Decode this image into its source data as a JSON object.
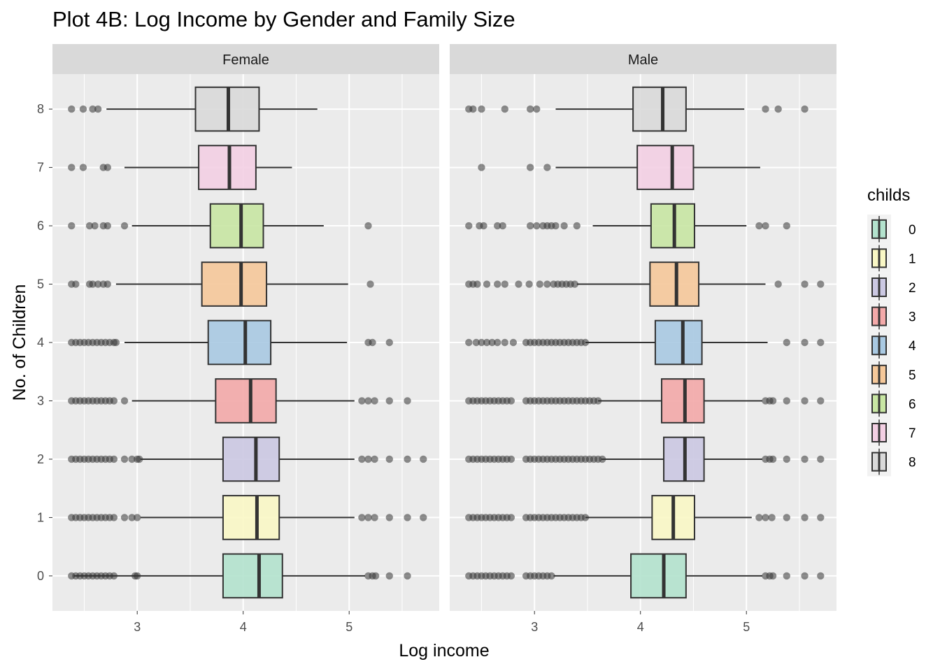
{
  "chart_data": {
    "type": "boxplot",
    "title": "Plot 4B: Log Income by Gender and Family Size",
    "xlabel": "Log income",
    "ylabel": "No. of Children",
    "xlim": [
      2.2,
      5.85
    ],
    "x_ticks": [
      3,
      4,
      5
    ],
    "y_categories": [
      "0",
      "1",
      "2",
      "3",
      "4",
      "5",
      "6",
      "7",
      "8"
    ],
    "legend": {
      "title": "childs",
      "position": "right",
      "entries": [
        "0",
        "1",
        "2",
        "3",
        "4",
        "5",
        "6",
        "7",
        "8"
      ]
    },
    "colors": {
      "0": "#b3e2cd",
      "1": "#f9f7c5",
      "2": "#cbc8e2",
      "3": "#f3a9a9",
      "4": "#a9c9e2",
      "5": "#f5c89a",
      "6": "#c8e6a3",
      "7": "#f3cfe3",
      "8": "#d9d9d9"
    },
    "grid": true,
    "panels": [
      {
        "label": "Female",
        "boxes": [
          {
            "childs": "0",
            "lower_whisker": 2.4,
            "q1": 3.81,
            "median": 4.15,
            "q3": 4.37,
            "upper_whisker": 5.15,
            "outliers": [
              2.38,
              2.42,
              2.46,
              2.5,
              2.54,
              2.58,
              2.62,
              2.66,
              2.7,
              2.74,
              2.78,
              2.98,
              3.0,
              5.18,
              5.22,
              5.25,
              5.38,
              5.55
            ]
          },
          {
            "childs": "1",
            "lower_whisker": 3.03,
            "q1": 3.81,
            "median": 4.13,
            "q3": 4.34,
            "upper_whisker": 5.05,
            "outliers": [
              2.38,
              2.42,
              2.46,
              2.5,
              2.54,
              2.58,
              2.62,
              2.66,
              2.7,
              2.74,
              2.78,
              2.88,
              2.95,
              3.0,
              5.12,
              5.18,
              5.24,
              5.38,
              5.55,
              5.7
            ]
          },
          {
            "childs": "2",
            "lower_whisker": 3.03,
            "q1": 3.81,
            "median": 4.12,
            "q3": 4.34,
            "upper_whisker": 5.05,
            "outliers": [
              2.38,
              2.42,
              2.46,
              2.5,
              2.54,
              2.58,
              2.62,
              2.66,
              2.7,
              2.74,
              2.78,
              2.88,
              2.95,
              3.0,
              3.02,
              5.12,
              5.18,
              5.24,
              5.38,
              5.55,
              5.7
            ]
          },
          {
            "childs": "3",
            "lower_whisker": 2.95,
            "q1": 3.74,
            "median": 4.07,
            "q3": 4.31,
            "upper_whisker": 5.05,
            "outliers": [
              2.38,
              2.42,
              2.46,
              2.5,
              2.54,
              2.58,
              2.62,
              2.66,
              2.7,
              2.74,
              2.78,
              2.88,
              5.12,
              5.18,
              5.24,
              5.38,
              5.55
            ]
          },
          {
            "childs": "4",
            "lower_whisker": 2.88,
            "q1": 3.67,
            "median": 4.02,
            "q3": 4.26,
            "upper_whisker": 4.98,
            "outliers": [
              2.38,
              2.42,
              2.46,
              2.5,
              2.54,
              2.58,
              2.62,
              2.66,
              2.7,
              2.74,
              2.78,
              2.8,
              5.18,
              5.22,
              5.38
            ]
          },
          {
            "childs": "5",
            "lower_whisker": 2.8,
            "q1": 3.61,
            "median": 3.98,
            "q3": 4.22,
            "upper_whisker": 4.99,
            "outliers": [
              2.38,
              2.42,
              2.55,
              2.58,
              2.63,
              2.68,
              2.72,
              5.2
            ]
          },
          {
            "childs": "6",
            "lower_whisker": 2.95,
            "q1": 3.69,
            "median": 3.98,
            "q3": 4.19,
            "upper_whisker": 4.76,
            "outliers": [
              2.38,
              2.55,
              2.6,
              2.68,
              2.72,
              2.88,
              5.18
            ]
          },
          {
            "childs": "7",
            "lower_whisker": 2.88,
            "q1": 3.58,
            "median": 3.87,
            "q3": 4.12,
            "upper_whisker": 4.46,
            "outliers": [
              2.38,
              2.49,
              2.68,
              2.72
            ]
          },
          {
            "childs": "8",
            "lower_whisker": 2.71,
            "q1": 3.55,
            "median": 3.86,
            "q3": 4.15,
            "upper_whisker": 4.7,
            "outliers": [
              2.38,
              2.49,
              2.58,
              2.63
            ]
          }
        ]
      },
      {
        "label": "Male",
        "boxes": [
          {
            "childs": "0",
            "lower_whisker": 3.18,
            "q1": 3.91,
            "median": 4.22,
            "q3": 4.43,
            "upper_whisker": 5.15,
            "outliers": [
              2.38,
              2.42,
              2.46,
              2.5,
              2.54,
              2.58,
              2.62,
              2.66,
              2.7,
              2.74,
              2.78,
              2.92,
              2.96,
              3.0,
              3.04,
              3.08,
              3.12,
              3.16,
              5.18,
              5.22,
              5.25,
              5.38,
              5.55,
              5.7
            ]
          },
          {
            "childs": "1",
            "lower_whisker": 3.48,
            "q1": 4.11,
            "median": 4.31,
            "q3": 4.51,
            "upper_whisker": 5.05,
            "outliers": [
              2.38,
              2.42,
              2.46,
              2.5,
              2.54,
              2.58,
              2.62,
              2.66,
              2.7,
              2.74,
              2.78,
              2.92,
              2.96,
              3.0,
              3.04,
              3.08,
              3.12,
              3.16,
              3.2,
              3.24,
              3.28,
              3.32,
              3.36,
              3.4,
              3.44,
              3.48,
              5.12,
              5.18,
              5.24,
              5.38,
              5.55,
              5.7
            ]
          },
          {
            "childs": "2",
            "lower_whisker": 3.63,
            "q1": 4.22,
            "median": 4.42,
            "q3": 4.6,
            "upper_whisker": 5.15,
            "outliers": [
              2.38,
              2.42,
              2.46,
              2.5,
              2.54,
              2.58,
              2.62,
              2.66,
              2.7,
              2.74,
              2.78,
              2.92,
              2.96,
              3.0,
              3.04,
              3.08,
              3.12,
              3.16,
              3.2,
              3.24,
              3.28,
              3.32,
              3.36,
              3.4,
              3.44,
              3.48,
              3.52,
              3.56,
              3.6,
              3.64,
              5.18,
              5.22,
              5.25,
              5.38,
              5.55,
              5.7
            ]
          },
          {
            "childs": "3",
            "lower_whisker": 3.6,
            "q1": 4.2,
            "median": 4.42,
            "q3": 4.6,
            "upper_whisker": 5.15,
            "outliers": [
              2.38,
              2.42,
              2.46,
              2.5,
              2.54,
              2.58,
              2.62,
              2.66,
              2.7,
              2.74,
              2.78,
              2.92,
              2.96,
              3.0,
              3.04,
              3.08,
              3.12,
              3.16,
              3.2,
              3.24,
              3.28,
              3.32,
              3.36,
              3.4,
              3.44,
              3.48,
              3.52,
              3.56,
              3.6,
              5.18,
              5.22,
              5.25,
              5.38,
              5.55,
              5.7
            ]
          },
          {
            "childs": "4",
            "lower_whisker": 3.48,
            "q1": 4.14,
            "median": 4.4,
            "q3": 4.58,
            "upper_whisker": 5.2,
            "outliers": [
              2.38,
              2.45,
              2.5,
              2.55,
              2.6,
              2.65,
              2.72,
              2.8,
              2.92,
              2.96,
              3.0,
              3.04,
              3.08,
              3.12,
              3.16,
              3.2,
              3.24,
              3.28,
              3.32,
              3.36,
              3.4,
              3.44,
              3.48,
              5.38,
              5.55,
              5.7
            ]
          },
          {
            "childs": "5",
            "lower_whisker": 3.4,
            "q1": 4.09,
            "median": 4.34,
            "q3": 4.55,
            "upper_whisker": 5.18,
            "outliers": [
              2.38,
              2.42,
              2.46,
              2.55,
              2.65,
              2.72,
              2.85,
              2.95,
              3.05,
              3.12,
              3.18,
              3.22,
              3.26,
              3.3,
              3.34,
              3.38,
              5.3,
              5.55,
              5.7
            ]
          },
          {
            "childs": "6",
            "lower_whisker": 3.55,
            "q1": 4.1,
            "median": 4.32,
            "q3": 4.51,
            "upper_whisker": 5.0,
            "outliers": [
              2.38,
              2.48,
              2.52,
              2.65,
              2.7,
              2.96,
              3.02,
              3.08,
              3.12,
              3.16,
              3.2,
              3.28,
              3.4,
              5.12,
              5.18,
              5.38
            ]
          },
          {
            "childs": "7",
            "lower_whisker": 3.2,
            "q1": 3.97,
            "median": 4.3,
            "q3": 4.5,
            "upper_whisker": 5.13,
            "outliers": [
              2.5,
              2.96,
              3.12
            ]
          },
          {
            "childs": "8",
            "lower_whisker": 3.2,
            "q1": 3.93,
            "median": 4.21,
            "q3": 4.43,
            "upper_whisker": 4.98,
            "outliers": [
              2.38,
              2.42,
              2.5,
              2.72,
              2.96,
              3.02,
              5.18,
              5.3,
              5.55
            ]
          }
        ]
      }
    ]
  }
}
